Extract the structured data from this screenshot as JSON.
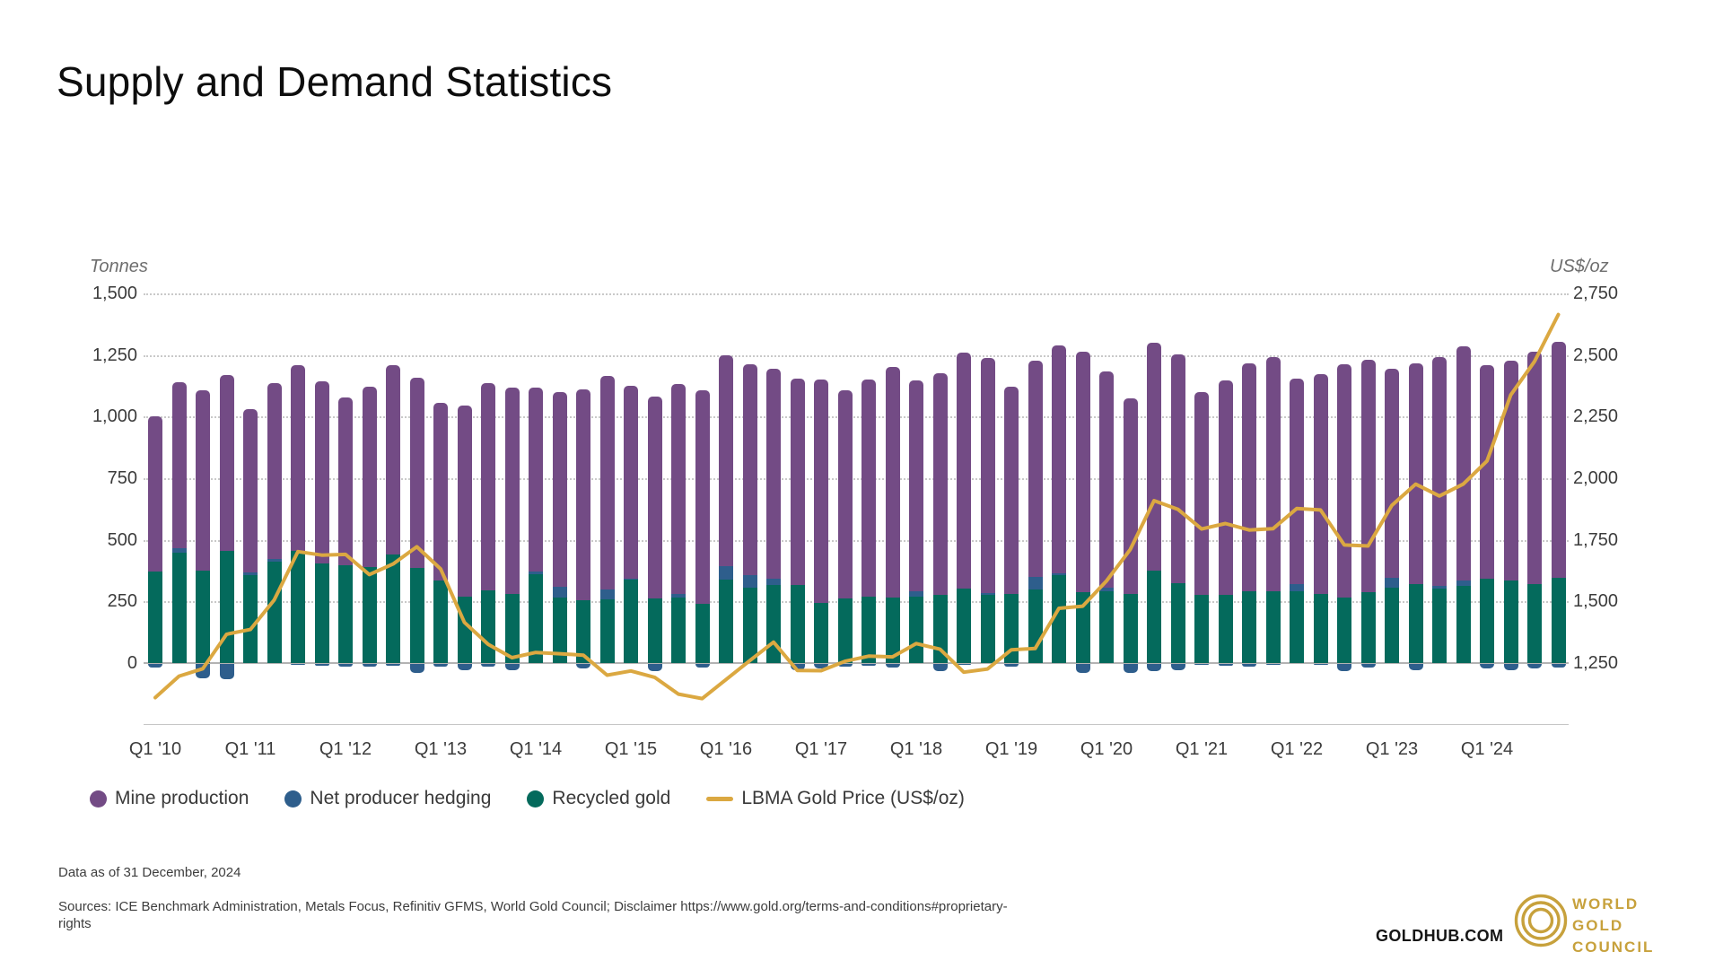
{
  "title": "Supply and Demand Statistics",
  "chart_data": {
    "type": "bar",
    "subtype": "stacked-bars-with-line-overlay",
    "left_axis": {
      "label": "Tonnes",
      "ticks": [
        "1,500",
        "1,250",
        "1,000",
        "750",
        "500",
        "250",
        "0"
      ],
      "min": 0,
      "max": 1500,
      "step": 250
    },
    "right_axis": {
      "label": "US$/oz",
      "ticks": [
        "2,750",
        "2,500",
        "2,250",
        "2,000",
        "1,750",
        "1,500",
        "1,250"
      ],
      "min": 1250,
      "max": 2750,
      "step": 250
    },
    "grid": "horizontal-dotted",
    "legend_position": "bottom",
    "x_tick_labels": [
      "Q1 '10",
      "Q1 '11",
      "Q1 '12",
      "Q1 '13",
      "Q1 '14",
      "Q1 '15",
      "Q1 '16",
      "Q1 '17",
      "Q1 '18",
      "Q1 '19",
      "Q1 '20",
      "Q1 '21",
      "Q1 '22",
      "Q1 '23",
      "Q1 '24"
    ],
    "categories": [
      "Q1 '10",
      "Q2 '10",
      "Q3 '10",
      "Q4 '10",
      "Q1 '11",
      "Q2 '11",
      "Q3 '11",
      "Q4 '11",
      "Q1 '12",
      "Q2 '12",
      "Q3 '12",
      "Q4 '12",
      "Q1 '13",
      "Q2 '13",
      "Q3 '13",
      "Q4 '13",
      "Q1 '14",
      "Q2 '14",
      "Q3 '14",
      "Q4 '14",
      "Q1 '15",
      "Q2 '15",
      "Q3 '15",
      "Q4 '15",
      "Q1 '16",
      "Q2 '16",
      "Q3 '16",
      "Q4 '16",
      "Q1 '17",
      "Q2 '17",
      "Q3 '17",
      "Q4 '17",
      "Q1 '18",
      "Q2 '18",
      "Q3 '18",
      "Q4 '18",
      "Q1 '19",
      "Q2 '19",
      "Q3 '19",
      "Q4 '19",
      "Q1 '20",
      "Q2 '20",
      "Q3 '20",
      "Q4 '20",
      "Q1 '21",
      "Q2 '21",
      "Q3 '21",
      "Q4 '21",
      "Q1 '22",
      "Q2 '22",
      "Q3 '22",
      "Q4 '22",
      "Q1 '23",
      "Q2 '23",
      "Q3 '23",
      "Q4 '23",
      "Q1 '24",
      "Q2 '24",
      "Q3 '24",
      "Q4 '24"
    ],
    "series": [
      {
        "name": "Mine production",
        "kind": "bar",
        "unit": "tonnes",
        "color": "#734b85",
        "values": [
          630,
          673,
          729,
          712,
          662,
          711,
          752,
          740,
          681,
          731,
          769,
          773,
          721,
          775,
          840,
          836,
          747,
          788,
          855,
          866,
          783,
          818,
          851,
          866,
          857,
          856,
          852,
          837,
          907,
          845,
          882,
          934,
          856,
          899,
          955,
          952,
          840,
          877,
          923,
          977,
          878,
          793,
          922,
          928,
          824,
          869,
          923,
          950,
          832,
          889,
          949,
          943,
          848,
          894,
          930,
          950,
          866,
          893,
          943,
          958
        ]
      },
      {
        "name": "Net producer hedging",
        "kind": "bar",
        "unit": "tonnes",
        "color": "#2e5e8c",
        "values": [
          -15,
          20,
          -58,
          -62,
          10,
          12,
          -5,
          -8,
          -10,
          -12,
          -6,
          -36,
          -10,
          -25,
          -10,
          -25,
          8,
          44,
          -20,
          41,
          5,
          -28,
          14,
          -16,
          55,
          50,
          25,
          -25,
          -20,
          -10,
          -8,
          -15,
          20,
          -30,
          -5,
          8,
          -10,
          53,
          10,
          -35,
          15,
          -35,
          -30,
          -25,
          -5,
          -8,
          -10,
          -5,
          30,
          -4,
          -30,
          -15,
          40,
          -25,
          10,
          22,
          -20,
          -25,
          -20,
          -15
        ]
      },
      {
        "name": "Recycled gold",
        "kind": "bar",
        "unit": "tonnes",
        "color": "#046a5c",
        "values": [
          370,
          447,
          376,
          455,
          358,
          412,
          455,
          403,
          397,
          391,
          441,
          385,
          336,
          270,
          295,
          282,
          362,
          266,
          255,
          259,
          337,
          263,
          266,
          240,
          337,
          305,
          318,
          318,
          243,
          263,
          270,
          266,
          270,
          278,
          303,
          277,
          281,
          298,
          355,
          288,
          290,
          280,
          376,
          325,
          276,
          277,
          293,
          293,
          292,
          282,
          264,
          288,
          307,
          322,
          303,
          314,
          343,
          335,
          322,
          345
        ]
      },
      {
        "name": "LBMA Gold Price (US$/oz)",
        "kind": "line",
        "unit": "US$/oz",
        "color": "#dba841",
        "values": [
          1110,
          1197,
          1227,
          1367,
          1386,
          1506,
          1702,
          1688,
          1691,
          1609,
          1652,
          1722,
          1632,
          1415,
          1326,
          1272,
          1293,
          1288,
          1282,
          1201,
          1218,
          1192,
          1124,
          1106,
          1183,
          1260,
          1335,
          1220,
          1219,
          1257,
          1278,
          1275,
          1329,
          1306,
          1213,
          1226,
          1304,
          1309,
          1472,
          1481,
          1583,
          1711,
          1909,
          1874,
          1794,
          1816,
          1790,
          1795,
          1877,
          1871,
          1729,
          1725,
          1890,
          1976,
          1928,
          1976,
          2070,
          2338,
          2474,
          2664
        ]
      }
    ]
  },
  "legend": {
    "items": [
      {
        "label": "Mine production",
        "marker": "dot",
        "color": "#734b85"
      },
      {
        "label": "Net producer hedging",
        "marker": "dot",
        "color": "#2e5e8c"
      },
      {
        "label": "Recycled gold",
        "marker": "dot",
        "color": "#046a5c"
      },
      {
        "label": "LBMA Gold Price (US$/oz)",
        "marker": "dash",
        "color": "#dba841"
      }
    ]
  },
  "footer": {
    "data_as_of": "Data as of 31 December, 2024",
    "sources_line1": "Sources: ICE Benchmark Administration, Metals Focus, Refinitiv GFMS, World Gold Council; Disclaimer https://www.gold.org/terms-and-conditions#proprietary-",
    "sources_line2": "rights"
  },
  "branding": {
    "site": "GOLDHUB.COM",
    "logo_line1": "WORLD",
    "logo_line2": "GOLD",
    "logo_line3": "COUNCIL",
    "logo_color": "#c7a13c"
  }
}
